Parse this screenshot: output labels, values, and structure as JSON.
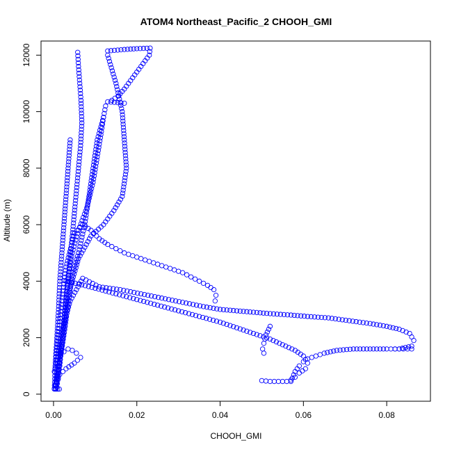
{
  "chart_data": {
    "type": "scatter",
    "title": "ATOM4 Northeast_Pacific_2 CHOOH_GMI",
    "xlabel": "CHOOH_GMI",
    "ylabel": "Altitude (m)",
    "xlim": [
      -0.003,
      0.0905
    ],
    "ylim": [
      -250,
      12500
    ],
    "xticks": [
      0.0,
      0.02,
      0.04,
      0.06,
      0.08
    ],
    "xtick_labels": [
      "0.00",
      "0.02",
      "0.04",
      "0.06",
      "0.08"
    ],
    "yticks": [
      0,
      2000,
      4000,
      6000,
      8000,
      10000,
      12000
    ],
    "ytick_labels": [
      "0",
      "2000",
      "4000",
      "6000",
      "8000",
      "10000",
      "12000"
    ],
    "grid": false,
    "marker": "open-circle",
    "color": "#0000ff",
    "series": [
      {
        "x": [
          0.0002,
          0.0008,
          0.0015,
          0.002,
          0.0025,
          0.003,
          0.0035,
          0.004,
          0.0045,
          0.005,
          0.0055,
          0.006,
          0.0065,
          0.0068,
          0.0066,
          0.0063,
          0.006,
          0.0058
        ],
        "y": [
          180,
          600,
          1200,
          1800,
          2500,
          3200,
          4000,
          4800,
          5600,
          6400,
          7200,
          8000,
          8800,
          9600,
          10400,
          11000,
          11600,
          12100
        ]
      },
      {
        "x": [
          0.0005,
          0.0012,
          0.002,
          0.0028,
          0.0035,
          0.0045,
          0.006,
          0.0075,
          0.0085,
          0.0095,
          0.0105,
          0.012,
          0.0125,
          0.013,
          0.017
        ],
        "y": [
          200,
          900,
          1600,
          2400,
          3200,
          4200,
          5000,
          6000,
          7000,
          8000,
          9000,
          9800,
          10200,
          10350,
          10300
        ]
      },
      {
        "x": [
          0.0006,
          0.0015,
          0.0025,
          0.0035,
          0.006,
          0.009,
          0.012,
          0.0145,
          0.0165,
          0.0175,
          0.017,
          0.0165,
          0.015,
          0.013
        ],
        "y": [
          300,
          1200,
          2200,
          3500,
          4800,
          5600,
          6000,
          6500,
          7000,
          8000,
          9000,
          10000,
          11000,
          12000
        ]
      },
      {
        "x": [
          0.013,
          0.017,
          0.02,
          0.0232,
          0.023,
          0.0215,
          0.02,
          0.0185,
          0.017,
          0.0155,
          0.014
        ],
        "y": [
          12150,
          12200,
          12230,
          12250,
          12000,
          11700,
          11400,
          11100,
          10800,
          10550,
          10400
        ]
      },
      {
        "x": [
          0.0008,
          0.0015,
          0.002,
          0.0025,
          0.003,
          0.0035,
          0.0045,
          0.006,
          0.008,
          0.0095,
          0.0105,
          0.0115,
          0.012
        ],
        "y": [
          250,
          1000,
          1800,
          2600,
          3400,
          4200,
          5000,
          5800,
          6600,
          7500,
          8400,
          9300,
          9800
        ]
      },
      {
        "x": [
          0.0005,
          0.0012,
          0.002,
          0.003,
          0.005,
          0.007,
          0.009,
          0.011,
          0.013,
          0.015,
          0.017,
          0.019,
          0.021,
          0.023,
          0.025,
          0.027,
          0.029,
          0.031,
          0.033,
          0.035,
          0.037,
          0.0385,
          0.039,
          0.0388
        ],
        "y": [
          1200,
          2200,
          3300,
          4500,
          5700,
          6000,
          5800,
          5500,
          5300,
          5150,
          5000,
          4900,
          4800,
          4700,
          4600,
          4500,
          4400,
          4300,
          4150,
          4000,
          3850,
          3700,
          3500,
          3300
        ]
      },
      {
        "x": [
          0.0005,
          0.001,
          0.002,
          0.004,
          0.007,
          0.011,
          0.016,
          0.021,
          0.026,
          0.031,
          0.036,
          0.04,
          0.044,
          0.048,
          0.052,
          0.057,
          0.061,
          0.066,
          0.071,
          0.076,
          0.08,
          0.083,
          0.0855,
          0.0865,
          0.086,
          0.083,
          0.082
        ],
        "y": [
          300,
          1200,
          2200,
          3300,
          4100,
          3800,
          3700,
          3550,
          3400,
          3250,
          3100,
          3000,
          2950,
          2900,
          2850,
          2800,
          2750,
          2700,
          2600,
          2500,
          2400,
          2300,
          2150,
          1900,
          1700,
          1600,
          1600
        ]
      },
      {
        "x": [
          0.003,
          0.006,
          0.01,
          0.015,
          0.02,
          0.025,
          0.03,
          0.035,
          0.04,
          0.044,
          0.048,
          0.052,
          0.055,
          0.058,
          0.06,
          0.061,
          0.0605,
          0.059,
          0.058,
          0.057,
          0.056,
          0.054,
          0.052,
          0.05
        ],
        "y": [
          4000,
          3900,
          3750,
          3550,
          3350,
          3150,
          2950,
          2750,
          2550,
          2350,
          2150,
          1950,
          1750,
          1550,
          1350,
          1100,
          900,
          750,
          600,
          500,
          450,
          450,
          450,
          480
        ]
      },
      {
        "x": [
          0.052,
          0.051,
          0.0505,
          0.0502,
          0.0505
        ],
        "y": [
          2400,
          2100,
          1800,
          1600,
          1450
        ]
      },
      {
        "x": [
          0.057,
          0.058,
          0.059,
          0.06,
          0.061,
          0.063,
          0.065,
          0.068,
          0.072,
          0.076,
          0.08,
          0.083,
          0.086
        ],
        "y": [
          450,
          800,
          1000,
          1150,
          1250,
          1350,
          1450,
          1550,
          1600,
          1600,
          1600,
          1600,
          1600
        ]
      },
      {
        "x": [
          0.0002,
          0.0008,
          0.0015,
          0.0025,
          0.0035,
          0.0045,
          0.0055,
          0.0065,
          0.005,
          0.003,
          0.0015,
          0.0008,
          0.0005
        ],
        "y": [
          800,
          1200,
          1400,
          1500,
          1600,
          1550,
          1450,
          1300,
          1100,
          900,
          700,
          400,
          200
        ]
      },
      {
        "x": [
          0.0002,
          0.0004,
          0.0008,
          0.0012,
          0.0015,
          0.002,
          0.0025,
          0.003,
          0.0035,
          0.004
        ],
        "y": [
          200,
          1000,
          2000,
          3000,
          4000,
          5000,
          6000,
          7000,
          8000,
          9000
        ]
      },
      {
        "x": [
          0.0006,
          0.001,
          0.0014
        ],
        "y": [
          180,
          180,
          180
        ]
      }
    ]
  }
}
